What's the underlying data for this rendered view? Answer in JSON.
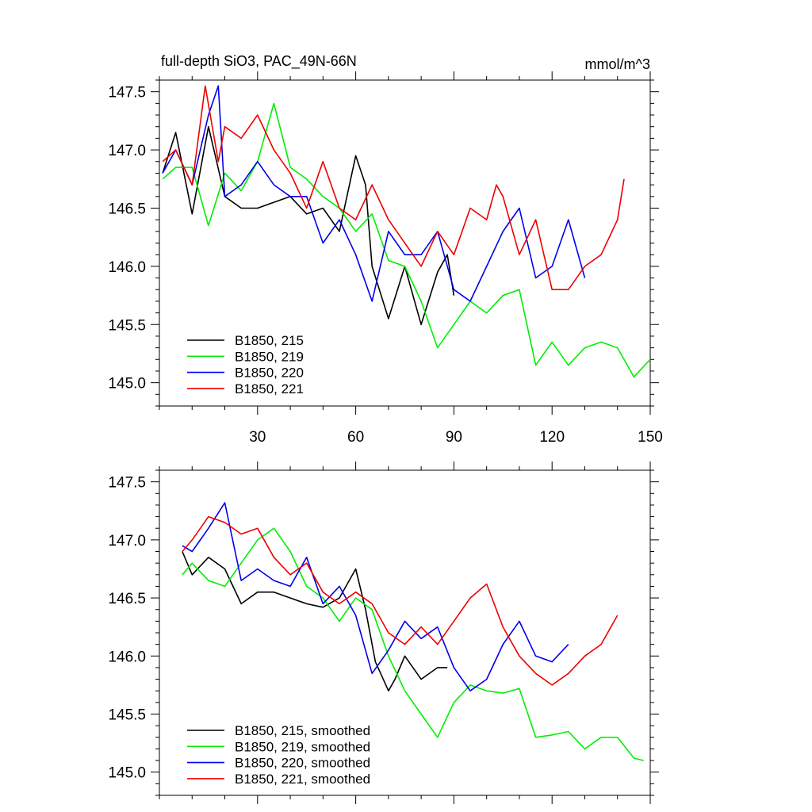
{
  "chart_data": [
    {
      "type": "line",
      "title": "full-depth SiO3, PAC_49N-66N",
      "units": "mmol/m^3",
      "xlim": [
        0,
        150
      ],
      "ylim": [
        144.8,
        147.6
      ],
      "x_ticks": [
        "30",
        "60",
        "90",
        "120",
        "150"
      ],
      "y_ticks": [
        "147.5",
        "147.0",
        "146.5",
        "146.0",
        "145.5",
        "145.0"
      ],
      "legend_position": "bottom-left",
      "series": [
        {
          "name": "B1850, 215",
          "color": "#000000",
          "x": [
            1,
            5,
            10,
            15,
            20,
            25,
            30,
            35,
            40,
            45,
            50,
            55,
            60,
            63,
            65,
            70,
            75,
            80,
            85,
            88,
            90
          ],
          "y": [
            146.8,
            147.15,
            146.45,
            147.2,
            146.6,
            146.5,
            146.5,
            146.55,
            146.6,
            146.45,
            146.5,
            146.3,
            146.95,
            146.7,
            146.0,
            145.55,
            146.0,
            145.5,
            145.95,
            146.1,
            145.75
          ]
        },
        {
          "name": "B1850, 219",
          "color": "#00ee00",
          "x": [
            1,
            5,
            10,
            15,
            20,
            25,
            30,
            35,
            40,
            45,
            50,
            55,
            60,
            65,
            70,
            75,
            80,
            85,
            90,
            95,
            100,
            105,
            110,
            115,
            120,
            125,
            130,
            135,
            140,
            145,
            150
          ],
          "y": [
            146.75,
            146.85,
            146.85,
            146.35,
            146.8,
            146.65,
            146.9,
            147.4,
            146.85,
            146.75,
            146.6,
            146.5,
            146.3,
            146.45,
            146.05,
            146.0,
            145.7,
            145.3,
            145.5,
            145.7,
            145.6,
            145.75,
            145.8,
            145.15,
            145.35,
            145.15,
            145.3,
            145.35,
            145.3,
            145.05,
            145.2
          ]
        },
        {
          "name": "B1850, 220",
          "color": "#0000ee",
          "x": [
            1,
            5,
            10,
            15,
            18,
            20,
            25,
            30,
            35,
            40,
            45,
            50,
            55,
            60,
            65,
            70,
            75,
            80,
            85,
            90,
            95,
            100,
            105,
            110,
            115,
            120,
            125,
            130
          ],
          "y": [
            146.8,
            147.0,
            146.7,
            147.3,
            147.55,
            146.6,
            146.7,
            146.9,
            146.7,
            146.6,
            146.6,
            146.2,
            146.4,
            146.1,
            145.7,
            146.3,
            146.1,
            146.1,
            146.3,
            145.8,
            145.7,
            146.0,
            146.3,
            146.5,
            145.9,
            146.0,
            146.4,
            145.9
          ]
        },
        {
          "name": "B1850, 221",
          "color": "#ee0000",
          "x": [
            1,
            5,
            10,
            14,
            18,
            20,
            25,
            30,
            35,
            40,
            45,
            50,
            55,
            60,
            65,
            70,
            75,
            80,
            85,
            90,
            95,
            100,
            103,
            105,
            110,
            115,
            120,
            125,
            130,
            135,
            140,
            142
          ],
          "y": [
            146.9,
            147.0,
            146.7,
            147.55,
            146.9,
            147.2,
            147.1,
            147.3,
            147.0,
            146.8,
            146.5,
            146.9,
            146.5,
            146.4,
            146.7,
            146.4,
            146.2,
            146.0,
            146.3,
            146.1,
            146.5,
            146.4,
            146.7,
            146.6,
            146.1,
            146.4,
            145.8,
            145.8,
            146.0,
            146.1,
            146.4,
            146.75
          ]
        }
      ]
    },
    {
      "type": "line",
      "xlim": [
        0,
        150
      ],
      "ylim": [
        144.8,
        147.6
      ],
      "y_ticks": [
        "147.5",
        "147.0",
        "146.5",
        "146.0",
        "145.5",
        "145.0"
      ],
      "legend_position": "bottom-left",
      "series": [
        {
          "name": "B1850, 215, smoothed",
          "color": "#000000",
          "x": [
            7,
            10,
            15,
            20,
            25,
            30,
            35,
            40,
            45,
            50,
            55,
            60,
            63,
            66,
            70,
            72,
            75,
            80,
            85,
            88
          ],
          "y": [
            146.9,
            146.7,
            146.85,
            146.75,
            146.45,
            146.55,
            146.55,
            146.5,
            146.45,
            146.42,
            146.5,
            146.75,
            146.4,
            145.95,
            145.7,
            145.8,
            146.0,
            145.8,
            145.9,
            145.9
          ]
        },
        {
          "name": "B1850, 219, smoothed",
          "color": "#00ee00",
          "x": [
            7,
            10,
            15,
            20,
            25,
            30,
            35,
            40,
            45,
            50,
            55,
            60,
            65,
            70,
            75,
            80,
            85,
            90,
            95,
            100,
            105,
            110,
            115,
            120,
            125,
            130,
            135,
            140,
            145,
            148
          ],
          "y": [
            146.7,
            146.8,
            146.65,
            146.6,
            146.8,
            147.0,
            147.1,
            146.9,
            146.6,
            146.5,
            146.3,
            146.5,
            146.4,
            146.0,
            145.7,
            145.5,
            145.3,
            145.6,
            145.75,
            145.7,
            145.68,
            145.72,
            145.3,
            145.32,
            145.35,
            145.2,
            145.3,
            145.3,
            145.12,
            145.1
          ]
        },
        {
          "name": "B1850, 220, smoothed",
          "color": "#0000ee",
          "x": [
            7,
            10,
            15,
            20,
            25,
            30,
            35,
            40,
            45,
            50,
            55,
            60,
            65,
            70,
            75,
            80,
            85,
            90,
            95,
            100,
            105,
            110,
            115,
            120,
            125
          ],
          "y": [
            146.95,
            146.9,
            147.1,
            147.32,
            146.65,
            146.75,
            146.65,
            146.6,
            146.85,
            146.45,
            146.6,
            146.35,
            145.85,
            146.05,
            146.3,
            146.15,
            146.25,
            145.9,
            145.7,
            145.8,
            146.1,
            146.3,
            146.0,
            145.95,
            146.1
          ]
        },
        {
          "name": "B1850, 221, smoothed",
          "color": "#ee0000",
          "x": [
            7,
            10,
            15,
            20,
            25,
            30,
            35,
            40,
            45,
            50,
            55,
            60,
            65,
            70,
            75,
            80,
            85,
            90,
            95,
            100,
            105,
            110,
            115,
            120,
            125,
            130,
            135,
            140
          ],
          "y": [
            146.9,
            147.0,
            147.2,
            147.15,
            147.05,
            147.1,
            146.85,
            146.7,
            146.8,
            146.55,
            146.45,
            146.55,
            146.45,
            146.2,
            146.1,
            146.25,
            146.1,
            146.3,
            146.5,
            146.62,
            146.25,
            146.0,
            145.85,
            145.75,
            145.85,
            146.0,
            146.1,
            146.35
          ]
        }
      ]
    }
  ]
}
